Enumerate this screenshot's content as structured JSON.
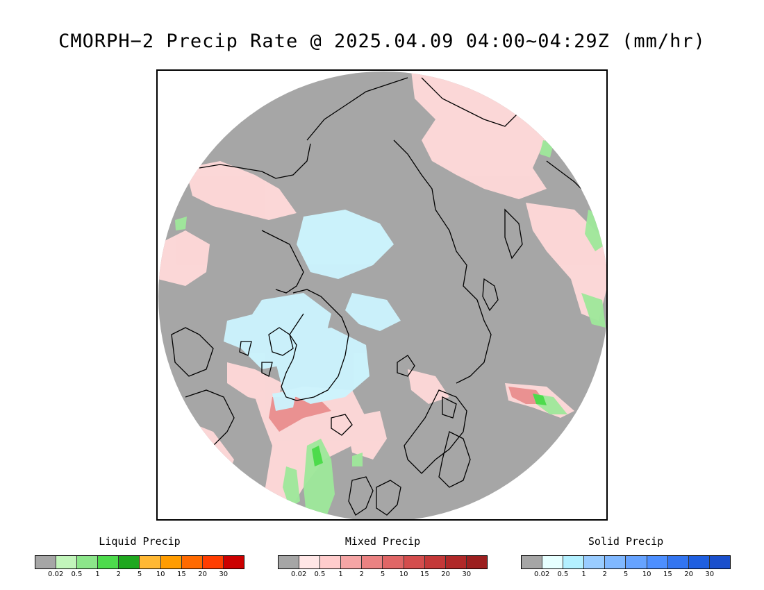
{
  "title": "CMORPH−2 Precip Rate @ 2025.04.09 04:00~04:29Z (mm/hr)",
  "legends": [
    {
      "label": "Liquid Precip",
      "colors": [
        "#a6a6a6",
        "#c2f5bb",
        "#8ce68a",
        "#4ddb4c",
        "#1fa81f",
        "#ffb833",
        "#ff9c00",
        "#ff6a00",
        "#ff3d00",
        "#cc0000"
      ],
      "ticks": [
        "0.02",
        "0.5",
        "1",
        "2",
        "5",
        "10",
        "15",
        "20",
        "30"
      ]
    },
    {
      "label": "Mixed Precip",
      "colors": [
        "#a6a6a6",
        "#ffe6e6",
        "#ffcccc",
        "#f5a5a5",
        "#eb8282",
        "#e06666",
        "#d44d4d",
        "#c43838",
        "#b02828",
        "#9c1f1f"
      ],
      "ticks": [
        "0.02",
        "0.5",
        "1",
        "2",
        "5",
        "10",
        "15",
        "20",
        "30"
      ]
    },
    {
      "label": "Solid Precip",
      "colors": [
        "#a6a6a6",
        "#e6ffff",
        "#b3f0ff",
        "#99ccff",
        "#80b8ff",
        "#66a3ff",
        "#4d8fff",
        "#3375f0",
        "#1f5fe0",
        "#1a4fcc"
      ],
      "ticks": [
        "0.02",
        "0.5",
        "1",
        "2",
        "5",
        "10",
        "15",
        "20",
        "30"
      ]
    }
  ],
  "map": {
    "no_precip_color": "#a6a6a6",
    "coastline_color": "#000000"
  }
}
